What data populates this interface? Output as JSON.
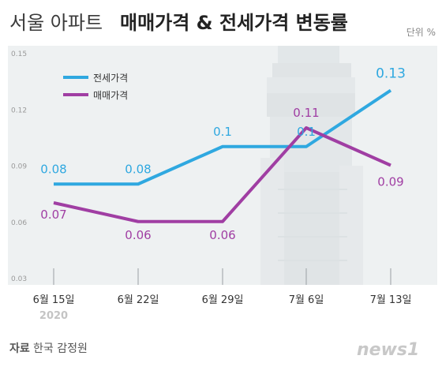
{
  "header": {
    "title_light": "서울 아파트",
    "title_bold": "매매가격 & 전세가격 변동률",
    "unit": "단위 %"
  },
  "source": {
    "label": "자료",
    "text": "한국 감정원"
  },
  "logo": {
    "text": "news1"
  },
  "chart_data": {
    "type": "line",
    "categories": [
      "6월 15일",
      "6월 22일",
      "6월 29일",
      "7월 6일",
      "7월 13일"
    ],
    "year_label": "2020",
    "ylim": [
      0.03,
      0.15
    ],
    "yticks": [
      "0.15",
      "0.12",
      "0.09",
      "0.06",
      "0.03"
    ],
    "ytick_values": [
      0.15,
      0.12,
      0.09,
      0.06,
      0.03
    ],
    "series": [
      {
        "name": "전세가격",
        "color": "#2fa8e0",
        "values": [
          0.08,
          0.08,
          0.1,
          0.1,
          0.13
        ],
        "labels": [
          "0.08",
          "0.08",
          "0.1",
          "0.1",
          "0.13"
        ]
      },
      {
        "name": "매매가격",
        "color": "#a03ea3",
        "values": [
          0.07,
          0.06,
          0.06,
          0.11,
          0.09
        ],
        "labels": [
          "0.07",
          "0.06",
          "0.06",
          "0.11",
          "0.09"
        ]
      }
    ],
    "legend_position": "top-left",
    "grid": false
  }
}
